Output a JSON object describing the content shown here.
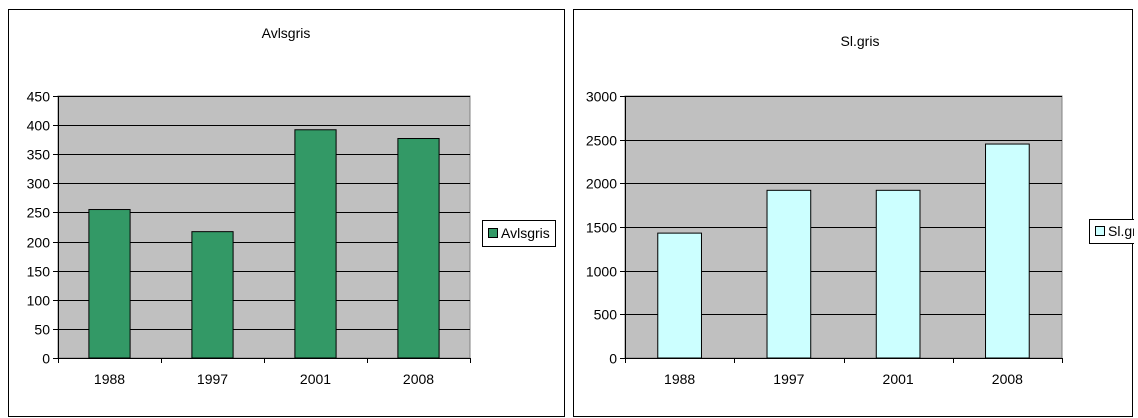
{
  "chart_data": [
    {
      "type": "bar",
      "title": "Avlsgris",
      "categories": [
        "1988",
        "1997",
        "2001",
        "2008"
      ],
      "series": [
        {
          "name": "Avlsgris",
          "values": [
            255,
            217,
            392,
            377
          ],
          "color": "#339966"
        }
      ],
      "ylim": [
        0,
        450
      ],
      "yticks": [
        "0",
        "50",
        "100",
        "150",
        "200",
        "250",
        "300",
        "350",
        "400",
        "450"
      ],
      "xlabel": "",
      "ylabel": "",
      "grid": true,
      "legend": "right",
      "plot_background": "#c0c0c0"
    },
    {
      "type": "bar",
      "title": "Sl.gris",
      "categories": [
        "1988",
        "1997",
        "2001",
        "2008"
      ],
      "series": [
        {
          "name": "Sl.gris",
          "values": [
            1430,
            1920,
            1920,
            2450
          ],
          "color": "#ccffff"
        }
      ],
      "ylim": [
        0,
        3000
      ],
      "yticks": [
        "0",
        "500",
        "1000",
        "1500",
        "2000",
        "2500",
        "3000"
      ],
      "xlabel": "",
      "ylabel": "",
      "grid": true,
      "legend": "right",
      "plot_background": "#c0c0c0"
    }
  ]
}
